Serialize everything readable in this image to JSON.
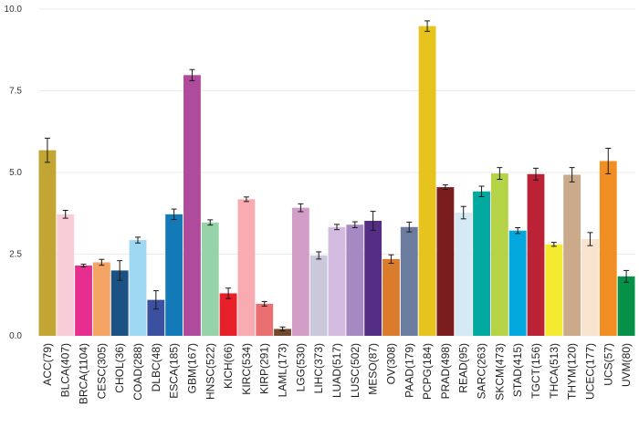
{
  "chart_data": {
    "type": "bar",
    "title": "",
    "xlabel": "",
    "ylabel": "",
    "ylim": [
      0,
      10
    ],
    "yticks": [
      {
        "value": 0,
        "label": "0.0"
      },
      {
        "value": 2.5,
        "label": "2.5"
      },
      {
        "value": 5,
        "label": "5.0"
      },
      {
        "value": 7.5,
        "label": "7.5"
      },
      {
        "value": 10,
        "label": "10.0"
      }
    ],
    "grid": true,
    "legend": "none",
    "categories": [
      "ACC(79)",
      "BLCA(407)",
      "BRCA(1104)",
      "CESC(305)",
      "CHOL(36)",
      "COAD(288)",
      "DLBC(48)",
      "ESCA(185)",
      "GBM(167)",
      "HNSC(522)",
      "KICH(66)",
      "KIRC(534)",
      "KIRP(291)",
      "LAML(173)",
      "LGG(530)",
      "LIHC(373)",
      "LUAD(517)",
      "LUSC(502)",
      "MESO(87)",
      "OV(308)",
      "PAAD(179)",
      "PCPG(184)",
      "PRAD(498)",
      "READ(95)",
      "SARC(263)",
      "SKCM(473)",
      "STAD(415)",
      "TGCT(156)",
      "THCA(513)",
      "THYM(120)",
      "UCEC(177)",
      "UCS(57)",
      "UVM(80)"
    ],
    "values": [
      5.68,
      3.72,
      2.15,
      2.25,
      2.0,
      2.93,
      1.1,
      3.72,
      7.98,
      3.47,
      1.3,
      4.18,
      0.98,
      0.21,
      3.92,
      2.46,
      3.33,
      3.4,
      3.52,
      2.35,
      3.33,
      9.48,
      4.55,
      3.77,
      4.42,
      4.97,
      3.22,
      4.95,
      2.8,
      4.93,
      2.96,
      5.35,
      1.82
    ],
    "errors": [
      0.37,
      0.12,
      0.04,
      0.09,
      0.3,
      0.09,
      0.28,
      0.16,
      0.17,
      0.08,
      0.16,
      0.07,
      0.07,
      0.06,
      0.12,
      0.11,
      0.08,
      0.09,
      0.29,
      0.13,
      0.15,
      0.16,
      0.07,
      0.19,
      0.16,
      0.18,
      0.09,
      0.18,
      0.06,
      0.22,
      0.2,
      0.39,
      0.18
    ],
    "colors": [
      "#C2A532",
      "#F9CDD8",
      "#E72D8E",
      "#F4A464",
      "#1C5283",
      "#9FD8F3",
      "#3C50A0",
      "#1479B7",
      "#B04A9C",
      "#97D3A9",
      "#E8202A",
      "#F8ABB0",
      "#EA6F70",
      "#73492D",
      "#D29DC6",
      "#CAC9DB",
      "#D3BCDF",
      "#A589C2",
      "#542D85",
      "#DB7C2D",
      "#6C7C9E",
      "#E6C31D",
      "#7B1C1F",
      "#D5EAF5",
      "#01A99E",
      "#B5D346",
      "#03A8DE",
      "#BB2235",
      "#F4EB30",
      "#CBAA8B",
      "#F8E3CF",
      "#F08E23",
      "#079048"
    ]
  }
}
